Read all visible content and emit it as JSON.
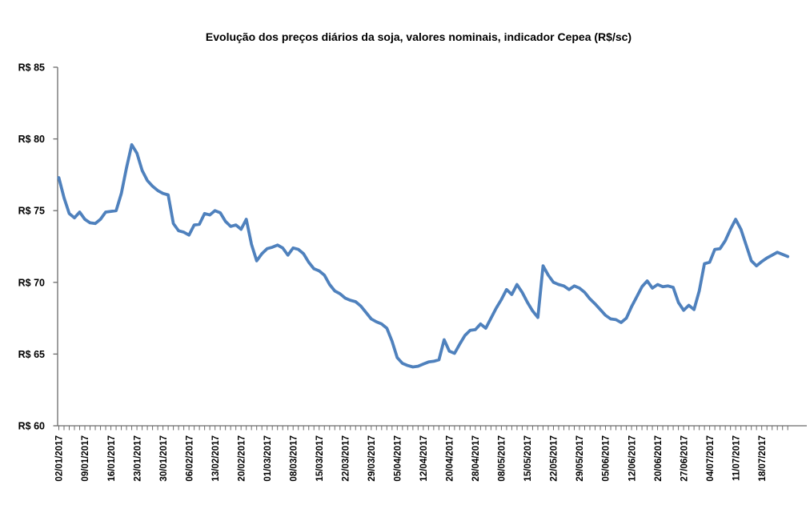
{
  "page": {
    "background": "#ffffff"
  },
  "style": {
    "line_color": "#4F81BD",
    "axis_color": "#6b6b6b",
    "text_color": "#000000"
  },
  "chart_data": {
    "type": "line",
    "title": "Evolução dos preços diários da soja, valores nominais, indicador Cepea (R$/sc)",
    "grid": false,
    "legend_position": "none",
    "y_axis": {
      "min": 60,
      "max": 85,
      "currency_prefix": "R$",
      "tick_values": [
        85,
        80,
        75,
        70,
        65,
        60
      ],
      "tick_labels": [
        "R$ 85",
        "R$ 80",
        "R$ 75",
        "R$ 70",
        "R$ 65",
        "R$ 60"
      ]
    },
    "x_axis": {
      "label_interval": 5,
      "tick_labels": [
        "02/01/2017",
        "09/01/2017",
        "16/01/2017",
        "23/01/2017",
        "30/01/2017",
        "06/02/2017",
        "13/02/2017",
        "20/02/2017",
        "01/03/2017",
        "08/03/2017",
        "15/03/2017",
        "22/03/2017",
        "29/03/2017",
        "05/04/2017",
        "12/04/2017",
        "20/04/2017",
        "28/04/2017",
        "08/05/2017",
        "15/05/2017",
        "22/05/2017",
        "29/05/2017",
        "05/06/2017",
        "12/06/2017",
        "20/06/2017",
        "27/06/2017",
        "04/07/2017",
        "11/07/2017",
        "18/07/2017"
      ]
    },
    "series": [
      {
        "color": "#4F81BD",
        "dates": [
          "02/01/2017",
          "03/01/2017",
          "04/01/2017",
          "05/01/2017",
          "06/01/2017",
          "09/01/2017",
          "10/01/2017",
          "11/01/2017",
          "12/01/2017",
          "13/01/2017",
          "16/01/2017",
          "17/01/2017",
          "18/01/2017",
          "19/01/2017",
          "20/01/2017",
          "23/01/2017",
          "24/01/2017",
          "25/01/2017",
          "26/01/2017",
          "27/01/2017",
          "30/01/2017",
          "31/01/2017",
          "01/02/2017",
          "02/02/2017",
          "03/02/2017",
          "06/02/2017",
          "07/02/2017",
          "08/02/2017",
          "09/02/2017",
          "10/02/2017",
          "13/02/2017",
          "14/02/2017",
          "15/02/2017",
          "16/02/2017",
          "17/02/2017",
          "20/02/2017",
          "21/02/2017",
          "22/02/2017",
          "23/02/2017",
          "24/02/2017",
          "01/03/2017",
          "02/03/2017",
          "03/03/2017",
          "06/03/2017",
          "07/03/2017",
          "08/03/2017",
          "09/03/2017",
          "10/03/2017",
          "13/03/2017",
          "14/03/2017",
          "15/03/2017",
          "16/03/2017",
          "17/03/2017",
          "20/03/2017",
          "21/03/2017",
          "22/03/2017",
          "23/03/2017",
          "24/03/2017",
          "27/03/2017",
          "28/03/2017",
          "29/03/2017",
          "30/03/2017",
          "31/03/2017",
          "03/04/2017",
          "04/04/2017",
          "05/04/2017",
          "06/04/2017",
          "07/04/2017",
          "10/04/2017",
          "11/04/2017",
          "12/04/2017",
          "13/04/2017",
          "17/04/2017",
          "18/04/2017",
          "19/04/2017",
          "20/04/2017",
          "24/04/2017",
          "25/04/2017",
          "26/04/2017",
          "27/04/2017",
          "28/04/2017",
          "02/05/2017",
          "03/05/2017",
          "04/05/2017",
          "05/05/2017",
          "08/05/2017",
          "09/05/2017",
          "10/05/2017",
          "11/05/2017",
          "12/05/2017",
          "15/05/2017",
          "16/05/2017",
          "17/05/2017",
          "18/05/2017",
          "19/05/2017",
          "22/05/2017",
          "23/05/2017",
          "24/05/2017",
          "25/05/2017",
          "26/05/2017",
          "29/05/2017",
          "30/05/2017",
          "31/05/2017",
          "01/06/2017",
          "02/06/2017",
          "05/06/2017",
          "06/06/2017",
          "07/06/2017",
          "08/06/2017",
          "09/06/2017",
          "12/06/2017",
          "13/06/2017",
          "14/06/2017",
          "16/06/2017",
          "19/06/2017",
          "20/06/2017",
          "21/06/2017",
          "22/06/2017",
          "23/06/2017",
          "26/06/2017",
          "27/06/2017",
          "28/06/2017",
          "29/06/2017",
          "30/06/2017",
          "03/07/2017",
          "04/07/2017",
          "05/07/2017",
          "06/07/2017",
          "07/07/2017",
          "10/07/2017",
          "11/07/2017",
          "12/07/2017",
          "13/07/2017",
          "14/07/2017",
          "17/07/2017",
          "18/07/2017",
          "19/07/2017",
          "20/07/2017",
          "21/07/2017",
          "24/07/2017",
          "25/07/2017"
        ],
        "values": [
          77.3,
          75.9,
          74.8,
          74.5,
          74.9,
          74.4,
          74.15,
          74.1,
          74.4,
          74.9,
          74.95,
          75.0,
          76.2,
          78.0,
          79.6,
          79.0,
          77.8,
          77.1,
          76.7,
          76.4,
          76.2,
          76.1,
          74.1,
          73.6,
          73.5,
          73.3,
          74.0,
          74.05,
          74.8,
          74.7,
          75.0,
          74.85,
          74.25,
          73.9,
          74.0,
          73.7,
          74.4,
          72.65,
          71.5,
          72.0,
          72.35,
          72.45,
          72.6,
          72.4,
          71.9,
          72.4,
          72.3,
          72.0,
          71.4,
          70.95,
          70.8,
          70.5,
          69.85,
          69.4,
          69.2,
          68.9,
          68.75,
          68.65,
          68.35,
          67.9,
          67.45,
          67.25,
          67.1,
          66.8,
          65.9,
          64.75,
          64.35,
          64.2,
          64.1,
          64.15,
          64.3,
          64.45,
          64.5,
          64.6,
          66.0,
          65.2,
          65.05,
          65.7,
          66.3,
          66.65,
          66.7,
          67.1,
          66.8,
          67.5,
          68.2,
          68.8,
          69.5,
          69.15,
          69.85,
          69.3,
          68.6,
          68.0,
          67.55,
          71.15,
          70.5,
          70.0,
          69.85,
          69.75,
          69.5,
          69.75,
          69.6,
          69.3,
          68.85,
          68.5,
          68.1,
          67.7,
          67.45,
          67.4,
          67.2,
          67.5,
          68.3,
          69.0,
          69.7,
          70.1,
          69.6,
          69.85,
          69.7,
          69.75,
          69.65,
          68.6,
          68.05,
          68.4,
          68.1,
          69.4,
          71.3,
          71.4,
          72.3,
          72.35,
          72.9,
          73.7,
          74.4,
          73.7,
          72.6,
          71.5,
          71.15,
          71.45,
          71.7,
          71.9,
          72.1,
          71.95,
          71.8
        ]
      }
    ]
  }
}
